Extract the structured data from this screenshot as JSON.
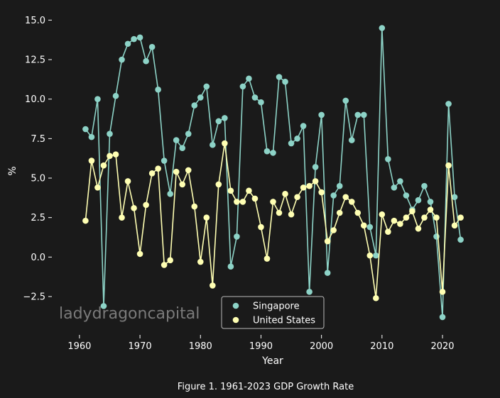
{
  "chart_data": {
    "type": "line",
    "xlabel": "Year",
    "ylabel": "%",
    "caption": "Figure 1. 1961-2023 GDP Growth Rate",
    "watermark": "ladydragoncapital",
    "xlim": [
      1957.9,
      2026.1
    ],
    "ylim": [
      -4.7,
      15.6
    ],
    "xticks": [
      1960,
      1970,
      1980,
      1990,
      2000,
      2010,
      2020
    ],
    "yticks": [
      -2.5,
      0.0,
      2.5,
      5.0,
      7.5,
      10.0,
      12.5,
      15.0
    ],
    "ytick_labels": [
      "−2.5",
      "0.0",
      "2.5",
      "5.0",
      "7.5",
      "10.0",
      "12.5",
      "15.0"
    ],
    "legend_position": "lower-center",
    "x": [
      1961,
      1962,
      1963,
      1964,
      1965,
      1966,
      1967,
      1968,
      1969,
      1970,
      1971,
      1972,
      1973,
      1974,
      1975,
      1976,
      1977,
      1978,
      1979,
      1980,
      1981,
      1982,
      1983,
      1984,
      1985,
      1986,
      1987,
      1988,
      1989,
      1990,
      1991,
      1992,
      1993,
      1994,
      1995,
      1996,
      1997,
      1998,
      1999,
      2000,
      2001,
      2002,
      2003,
      2004,
      2005,
      2006,
      2007,
      2008,
      2009,
      2010,
      2011,
      2012,
      2013,
      2014,
      2015,
      2016,
      2017,
      2018,
      2019,
      2020,
      2021,
      2022,
      2023
    ],
    "series": [
      {
        "name": "Singapore",
        "color": "#8dd3c7",
        "values": [
          8.1,
          7.6,
          10.0,
          -3.1,
          7.8,
          10.2,
          12.5,
          13.5,
          13.8,
          13.9,
          12.4,
          13.3,
          10.6,
          6.1,
          4.0,
          7.4,
          6.9,
          7.8,
          9.6,
          10.1,
          10.8,
          7.1,
          8.6,
          8.8,
          -0.6,
          1.3,
          10.8,
          11.3,
          10.1,
          9.8,
          6.7,
          6.6,
          11.4,
          11.1,
          7.2,
          7.5,
          8.3,
          -2.2,
          5.7,
          9.0,
          -1.0,
          3.9,
          4.5,
          9.9,
          7.4,
          9.0,
          9.0,
          1.9,
          0.1,
          14.5,
          6.2,
          4.4,
          4.8,
          3.9,
          3.0,
          3.6,
          4.5,
          3.5,
          1.3,
          -3.8,
          9.7,
          3.8,
          1.1
        ]
      },
      {
        "name": "United States",
        "color": "#ffffb3",
        "values": [
          2.3,
          6.1,
          4.4,
          5.8,
          6.4,
          6.5,
          2.5,
          4.8,
          3.1,
          0.2,
          3.3,
          5.3,
          5.6,
          -0.5,
          -0.2,
          5.4,
          4.6,
          5.5,
          3.2,
          -0.3,
          2.5,
          -1.8,
          4.6,
          7.2,
          4.2,
          3.5,
          3.5,
          4.2,
          3.7,
          1.9,
          -0.1,
          3.5,
          2.8,
          4.0,
          2.7,
          3.8,
          4.4,
          4.5,
          4.8,
          4.1,
          1.0,
          1.7,
          2.8,
          3.8,
          3.5,
          2.8,
          2.0,
          0.1,
          -2.6,
          2.7,
          1.6,
          2.3,
          2.1,
          2.5,
          2.9,
          1.8,
          2.5,
          3.0,
          2.5,
          -2.2,
          5.8,
          2.0,
          2.5
        ]
      }
    ]
  }
}
